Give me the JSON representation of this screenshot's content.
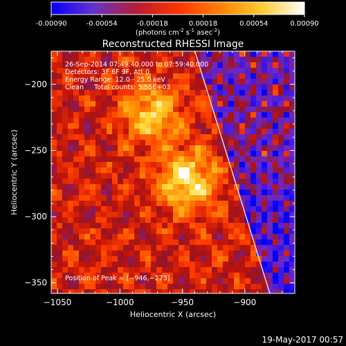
{
  "colorbar": {
    "tick_labels": [
      "-0.00090",
      "-0.00054",
      "-0.00018",
      "0.00018",
      "0.00054",
      "0.00090"
    ],
    "tick_values": [
      -0.0009,
      -0.00054,
      -0.00018,
      0.00018,
      0.00054,
      0.0009
    ],
    "range": [
      -0.0009,
      0.0009
    ],
    "units_pre": "(photons cm",
    "units_sup1": "-2",
    "units_mid": " s",
    "units_sup2": "-1",
    "units_post": " asec",
    "units_sup3": "-2",
    "units_end": ")",
    "gradient": [
      "#0000ff",
      "#6633cc",
      "#b31d35",
      "#ff3300",
      "#ff8000",
      "#ffcc33",
      "#ffffff"
    ]
  },
  "chart_data": {
    "type": "heatmap",
    "title": "Reconstructed RHESSI Image",
    "xlabel": "Heliocentric X (arcsec)",
    "ylabel": "Heliocentric Y (arcsec)",
    "xlim": [
      -1055,
      -860
    ],
    "ylim": [
      -358,
      -175
    ],
    "x_ticks": [
      -1050,
      -1000,
      -950,
      -900
    ],
    "x_tick_labels": [
      "−1050",
      "−1000",
      "−950",
      "−900"
    ],
    "y_ticks": [
      -200,
      -250,
      -300,
      -350
    ],
    "y_tick_labels": [
      "−200",
      "−250",
      "−300",
      "−350"
    ],
    "sources": [
      {
        "x": -975,
        "y": -222,
        "peak": 0.00075
      },
      {
        "x": -946,
        "y": -273,
        "peak": 0.0009
      }
    ],
    "limb_line": [
      [
        -940,
        -175
      ],
      [
        -880,
        -358
      ]
    ],
    "annotations": [
      "26-Sep-2014 07:49:40.000 to 07:59:40.000",
      "Detectors: 3F 6F 9F, Att 0",
      "Energy Range: 12.0 - 25.0 keV",
      "Clean     Total counts: 5.55E+03",
      "Position of Peak = [−946,−273]"
    ],
    "timestamp": "19-May-2017 00:57"
  }
}
